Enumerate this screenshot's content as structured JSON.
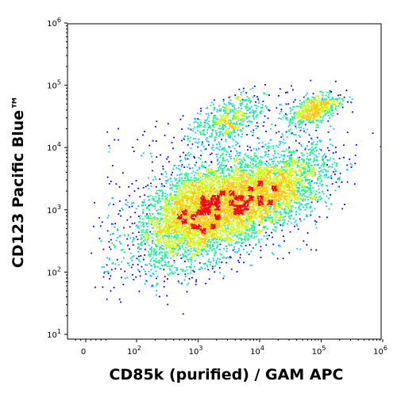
{
  "chart_data": {
    "type": "scatter",
    "style": "density-colored flow cytometry dot plot",
    "xlabel": "CD85k (purified) / GAM APC",
    "ylabel": "CD123 Pacific Blue™",
    "x_scale": "biexponential (log above 10^2)",
    "y_scale": "log",
    "xlim": [
      -1,
      1000000
    ],
    "ylim": [
      10,
      1000000
    ],
    "x_ticks": [
      {
        "value": 0,
        "base": "0",
        "exp": ""
      },
      {
        "value": 100,
        "base": "10",
        "exp": "2"
      },
      {
        "value": 1000,
        "base": "10",
        "exp": "3"
      },
      {
        "value": 10000,
        "base": "10",
        "exp": "4"
      },
      {
        "value": 100000,
        "base": "10",
        "exp": "5"
      },
      {
        "value": 1000000,
        "base": "10",
        "exp": "6"
      }
    ],
    "y_ticks": [
      {
        "value": 10,
        "base": "10",
        "exp": "1"
      },
      {
        "value": 100,
        "base": "10",
        "exp": "2"
      },
      {
        "value": 1000,
        "base": "10",
        "exp": "3"
      },
      {
        "value": 10000,
        "base": "10",
        "exp": "4"
      },
      {
        "value": 100000,
        "base": "10",
        "exp": "5"
      },
      {
        "value": 1000000,
        "base": "10",
        "exp": "6"
      }
    ],
    "populations": [
      {
        "center_x": 1150,
        "center_y": 950,
        "spread_x_decades": 0.55,
        "spread_y_decades": 0.38,
        "density": "highest"
      },
      {
        "center_x": 15000,
        "center_y": 2000,
        "spread_x_decades": 0.5,
        "spread_y_decades": 0.3,
        "density": "medium"
      },
      {
        "center_x": 3000,
        "center_y": 28000,
        "spread_x_decades": 0.3,
        "spread_y_decades": 0.18,
        "density": "low"
      },
      {
        "center_x": 75000,
        "center_y": 42000,
        "spread_x_decades": 0.22,
        "spread_y_decades": 0.12,
        "density": "low"
      }
    ],
    "density_colors": [
      "#0000ff",
      "#00c8ff",
      "#00ff80",
      "#c8ff00",
      "#ffc800",
      "#ff0000"
    ]
  }
}
